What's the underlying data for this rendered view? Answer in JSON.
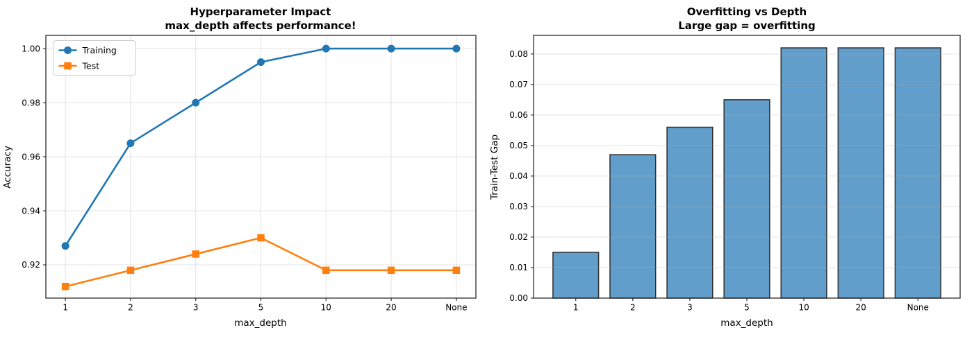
{
  "chart_data": [
    {
      "type": "line",
      "title": "Hyperparameter Impact",
      "subtitle": "max_depth affects performance!",
      "xlabel": "max_depth",
      "ylabel": "Accuracy",
      "categories": [
        "1",
        "2",
        "3",
        "5",
        "10",
        "20",
        "None"
      ],
      "series": [
        {
          "name": "Training",
          "color": "#1f77b4",
          "marker": "circle",
          "values": [
            0.927,
            0.965,
            0.98,
            0.995,
            1.0,
            1.0,
            1.0
          ]
        },
        {
          "name": "Test",
          "color": "#ff7f0e",
          "marker": "square",
          "values": [
            0.912,
            0.918,
            0.924,
            0.93,
            0.918,
            0.918,
            0.918
          ]
        }
      ],
      "ylim": [
        0.9077,
        1.0049
      ],
      "yticks": [
        0.92,
        0.94,
        0.96,
        0.98,
        1.0
      ],
      "ytick_labels": [
        "0.92",
        "0.94",
        "0.96",
        "0.98",
        "1.00"
      ],
      "grid": "both",
      "legend_position": "upper left"
    },
    {
      "type": "bar",
      "title": "Overfitting vs Depth",
      "subtitle": "Large gap = overfitting",
      "xlabel": "max_depth",
      "ylabel": "Train-Test Gap",
      "categories": [
        "1",
        "2",
        "3",
        "5",
        "10",
        "20",
        "None"
      ],
      "values": [
        0.015,
        0.047,
        0.056,
        0.065,
        0.082,
        0.082,
        0.082
      ],
      "bar_color": "#619ecb",
      "bar_edge_color": "#2e2e2e",
      "bar_width": 0.8,
      "ylim": [
        0,
        0.0861
      ],
      "yticks": [
        0.0,
        0.01,
        0.02,
        0.03,
        0.04,
        0.05,
        0.06,
        0.07,
        0.08
      ],
      "ytick_labels": [
        "0.00",
        "0.01",
        "0.02",
        "0.03",
        "0.04",
        "0.05",
        "0.06",
        "0.07",
        "0.08"
      ],
      "grid": "y",
      "legend_position": "none"
    }
  ]
}
